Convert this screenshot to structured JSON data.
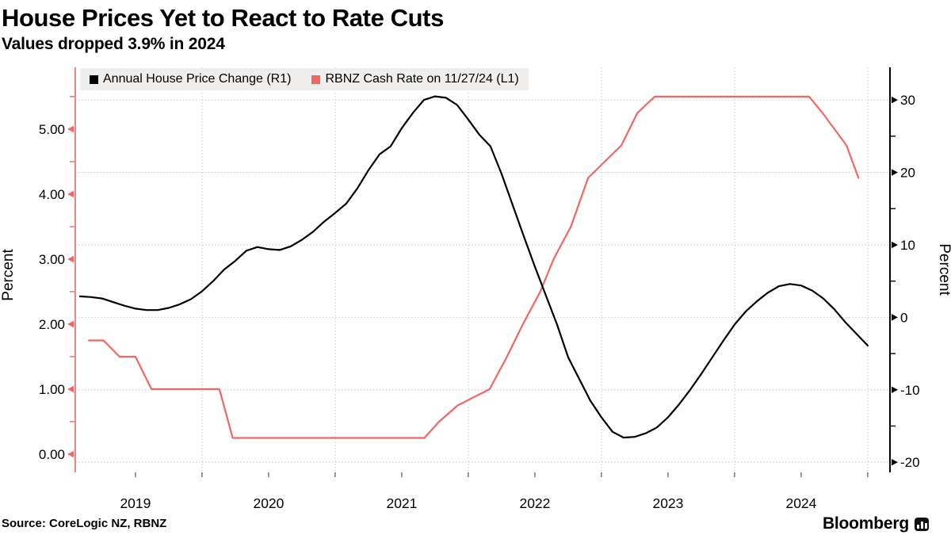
{
  "title": "House Prices Yet to React to Rate Cuts",
  "subtitle": "Values dropped 3.9% in 2024",
  "source_text": "Source: CoreLogic NZ, RBNZ",
  "brand": "Bloomberg",
  "colors": {
    "house_price_line": "#000000",
    "cash_rate_line": "#f26762",
    "gridline": "#c9c9c9",
    "legend_bg": "#efeeec"
  },
  "legend": {
    "items": [
      {
        "label": "Annual House Price Change (R1)",
        "color": "#000000"
      },
      {
        "label": "RBNZ Cash Rate on 11/27/24 (L1)",
        "color": "#f26762"
      }
    ]
  },
  "chart_data": {
    "type": "line",
    "title": "House Prices Yet to React to Rate Cuts",
    "subtitle": "Values dropped 3.9% in 2024",
    "grid": {
      "color": "#c9c9c9",
      "horizontal_from": "right_axis",
      "vertical_years": [
        2020,
        2021,
        2022,
        2023,
        2024,
        2025
      ]
    },
    "x_axis": {
      "range": [
        2019.048,
        2025.167
      ],
      "bottom_ticks": [
        2019.5,
        2020,
        2020.5,
        2021,
        2021.5,
        2022,
        2022.5,
        2023,
        2023.5,
        2024,
        2024.5,
        2025
      ],
      "labels": [
        {
          "text": "2019",
          "center": 2019.5
        },
        {
          "text": "2020",
          "center": 2020.5
        },
        {
          "text": "2021",
          "center": 2021.5
        },
        {
          "text": "2022",
          "center": 2022.5
        },
        {
          "text": "2023",
          "center": 2023.5
        },
        {
          "text": "2024",
          "center": 2024.5
        }
      ]
    },
    "left_axis": {
      "label": "Percent",
      "color": "#f26762",
      "range": [
        -0.28,
        5.95
      ],
      "major_ticks": [
        0,
        1,
        2,
        3,
        4,
        5
      ],
      "major_labels": [
        "0.00",
        "1.00",
        "2.00",
        "3.00",
        "4.00",
        "5.00"
      ],
      "minor_ticks": [
        0.5,
        1.5,
        2.5,
        3.5,
        4.5,
        5.5
      ]
    },
    "right_axis": {
      "label": "Percent",
      "color": "#000000",
      "range": [
        -21.4,
        34.5
      ],
      "major_ticks": [
        -20,
        -10,
        0,
        10,
        20,
        30
      ],
      "major_labels": [
        "-20",
        "-10",
        "0",
        "10",
        "20",
        "30"
      ],
      "minor_ticks": [
        -15,
        -5,
        5,
        15,
        25
      ]
    },
    "series": [
      {
        "name": "RBNZ Cash Rate on 11/27/24 (L1)",
        "axis": "left",
        "color": "#f26762",
        "width": 2.2,
        "x": [
          2019.15,
          2019.26,
          2019.38,
          2019.5,
          2019.62,
          2020.13,
          2020.23,
          2021.67,
          2021.78,
          2021.92,
          2022.16,
          2022.29,
          2022.41,
          2022.54,
          2022.64,
          2022.77,
          2022.9,
          2023.15,
          2023.27,
          2023.4,
          2024.56,
          2024.66,
          2024.84,
          2024.93
        ],
        "values": [
          1.75,
          1.75,
          1.5,
          1.5,
          1.0,
          1.0,
          0.25,
          0.25,
          0.5,
          0.75,
          1.0,
          1.5,
          2.0,
          2.5,
          3.0,
          3.5,
          4.25,
          4.75,
          5.25,
          5.5,
          5.5,
          5.25,
          4.75,
          4.25
        ]
      },
      {
        "name": "Annual House Price Change (R1)",
        "axis": "right",
        "color": "#000000",
        "width": 2.2,
        "monthly_start_year": 2019,
        "values": [
          2.9,
          2.8,
          2.6,
          2.1,
          1.6,
          1.2,
          1.0,
          1.0,
          1.3,
          1.8,
          2.5,
          3.6,
          5.0,
          6.6,
          7.8,
          9.2,
          9.7,
          9.4,
          9.3,
          9.8,
          10.7,
          11.8,
          13.2,
          14.4,
          15.7,
          17.8,
          20.3,
          22.5,
          23.6,
          26.1,
          28.2,
          30.0,
          30.5,
          30.3,
          29.3,
          27.3,
          25.2,
          23.6,
          19.8,
          15.5,
          11.2,
          7.0,
          3.0,
          -1.0,
          -5.5,
          -8.5,
          -11.5,
          -13.8,
          -15.8,
          -16.6,
          -16.5,
          -16.0,
          -15.2,
          -13.8,
          -12.0,
          -10.0,
          -7.8,
          -5.5,
          -3.2,
          -1.0,
          0.8,
          2.2,
          3.4,
          4.3,
          4.6,
          4.4,
          3.7,
          2.6,
          1.1,
          -0.7,
          -2.3,
          -3.9
        ]
      }
    ]
  }
}
